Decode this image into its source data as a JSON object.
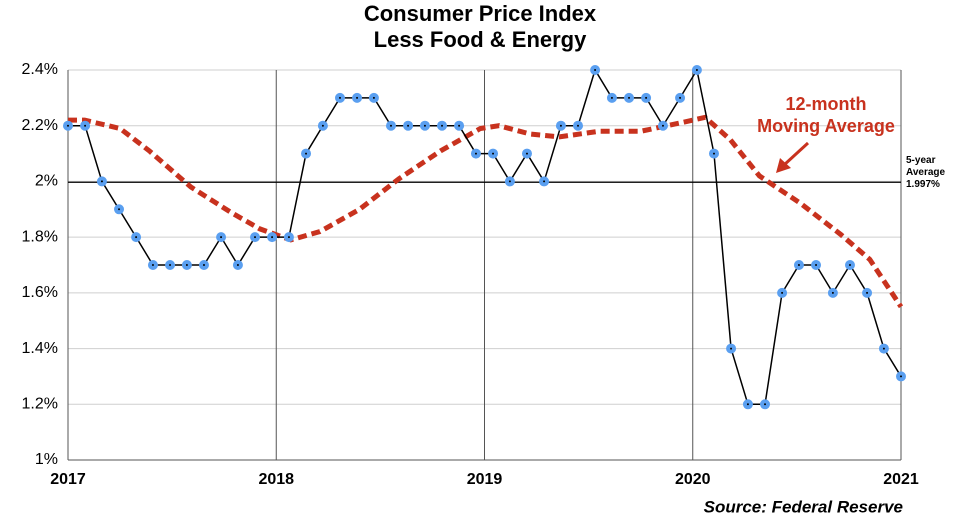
{
  "chart_data": {
    "type": "line",
    "title": "Consumer Price Index",
    "subtitle": "Less Food & Energy",
    "source": "Source: Federal Reserve",
    "xlim": [
      2017,
      2021
    ],
    "xticks": [
      2017,
      2018,
      2019,
      2020,
      2021
    ],
    "ylim": [
      1,
      2.4
    ],
    "yticks": [
      {
        "value": 1,
        "label": "1%"
      },
      {
        "value": 1.2,
        "label": "1.2%"
      },
      {
        "value": 1.4,
        "label": "1.4%"
      },
      {
        "value": 1.6,
        "label": "1.6%"
      },
      {
        "value": 1.8,
        "label": "1.8%"
      },
      {
        "value": 2,
        "label": "2%"
      },
      {
        "value": 2.2,
        "label": "2.2%"
      },
      {
        "value": 2.4,
        "label": "2.4%"
      }
    ],
    "grid": true,
    "series": [
      {
        "color": "#000000",
        "marker_color": "#5a9ff0",
        "x": [
          2017,
          2017.082,
          2017.163,
          2017.245,
          2017.327,
          2017.408,
          2017.49,
          2017.571,
          2017.653,
          2017.735,
          2017.816,
          2017.898,
          2017.98,
          2018.061,
          2018.143,
          2018.224,
          2018.306,
          2018.388,
          2018.469,
          2018.551,
          2018.633,
          2018.714,
          2018.796,
          2018.878,
          2018.959,
          2019.041,
          2019.122,
          2019.204,
          2019.286,
          2019.367,
          2019.449,
          2019.531,
          2019.612,
          2019.694,
          2019.776,
          2019.857,
          2019.939,
          2020.02,
          2020.102,
          2020.184,
          2020.265,
          2020.347,
          2020.429,
          2020.51,
          2020.592,
          2020.673,
          2020.755,
          2020.837,
          2020.918,
          2021
        ],
        "values": [
          2.2,
          2.2,
          2.0,
          1.9,
          1.8,
          1.7,
          1.7,
          1.7,
          1.7,
          1.8,
          1.7,
          1.8,
          1.8,
          1.8,
          2.1,
          2.2,
          2.3,
          2.3,
          2.3,
          2.2,
          2.2,
          2.2,
          2.2,
          2.2,
          2.1,
          2.1,
          2.0,
          2.1,
          2.0,
          2.2,
          2.2,
          2.4,
          2.3,
          2.3,
          2.3,
          2.2,
          2.3,
          2.4,
          2.1,
          1.4,
          1.2,
          1.2,
          1.6,
          1.7,
          1.7,
          1.6,
          1.7,
          1.6,
          1.4,
          1.3
        ]
      },
      {
        "color": "#c8321e",
        "dashed": true,
        "x": [
          2017,
          2017.08,
          2017.25,
          2017.39,
          2017.59,
          2017.78,
          2017.92,
          2018.07,
          2018.21,
          2018.4,
          2018.59,
          2018.79,
          2018.98,
          2019.07,
          2019.22,
          2019.36,
          2019.55,
          2019.75,
          2019.94,
          2020.06,
          2020.18,
          2020.32,
          2020.52,
          2020.71,
          2020.85,
          2021
        ],
        "values": [
          2.22,
          2.22,
          2.19,
          2.11,
          1.98,
          1.89,
          1.83,
          1.79,
          1.82,
          1.9,
          2.01,
          2.11,
          2.19,
          2.2,
          2.17,
          2.16,
          2.18,
          2.18,
          2.21,
          2.23,
          2.15,
          2.02,
          1.92,
          1.81,
          1.72,
          1.55
        ]
      }
    ],
    "reference_line": {
      "value": 1.997,
      "color": "#000000",
      "label": [
        "5-year",
        "Average",
        "1.997%"
      ]
    },
    "annotation": {
      "text": [
        "12-month",
        "Moving Average"
      ],
      "color": "#c8321e"
    }
  }
}
